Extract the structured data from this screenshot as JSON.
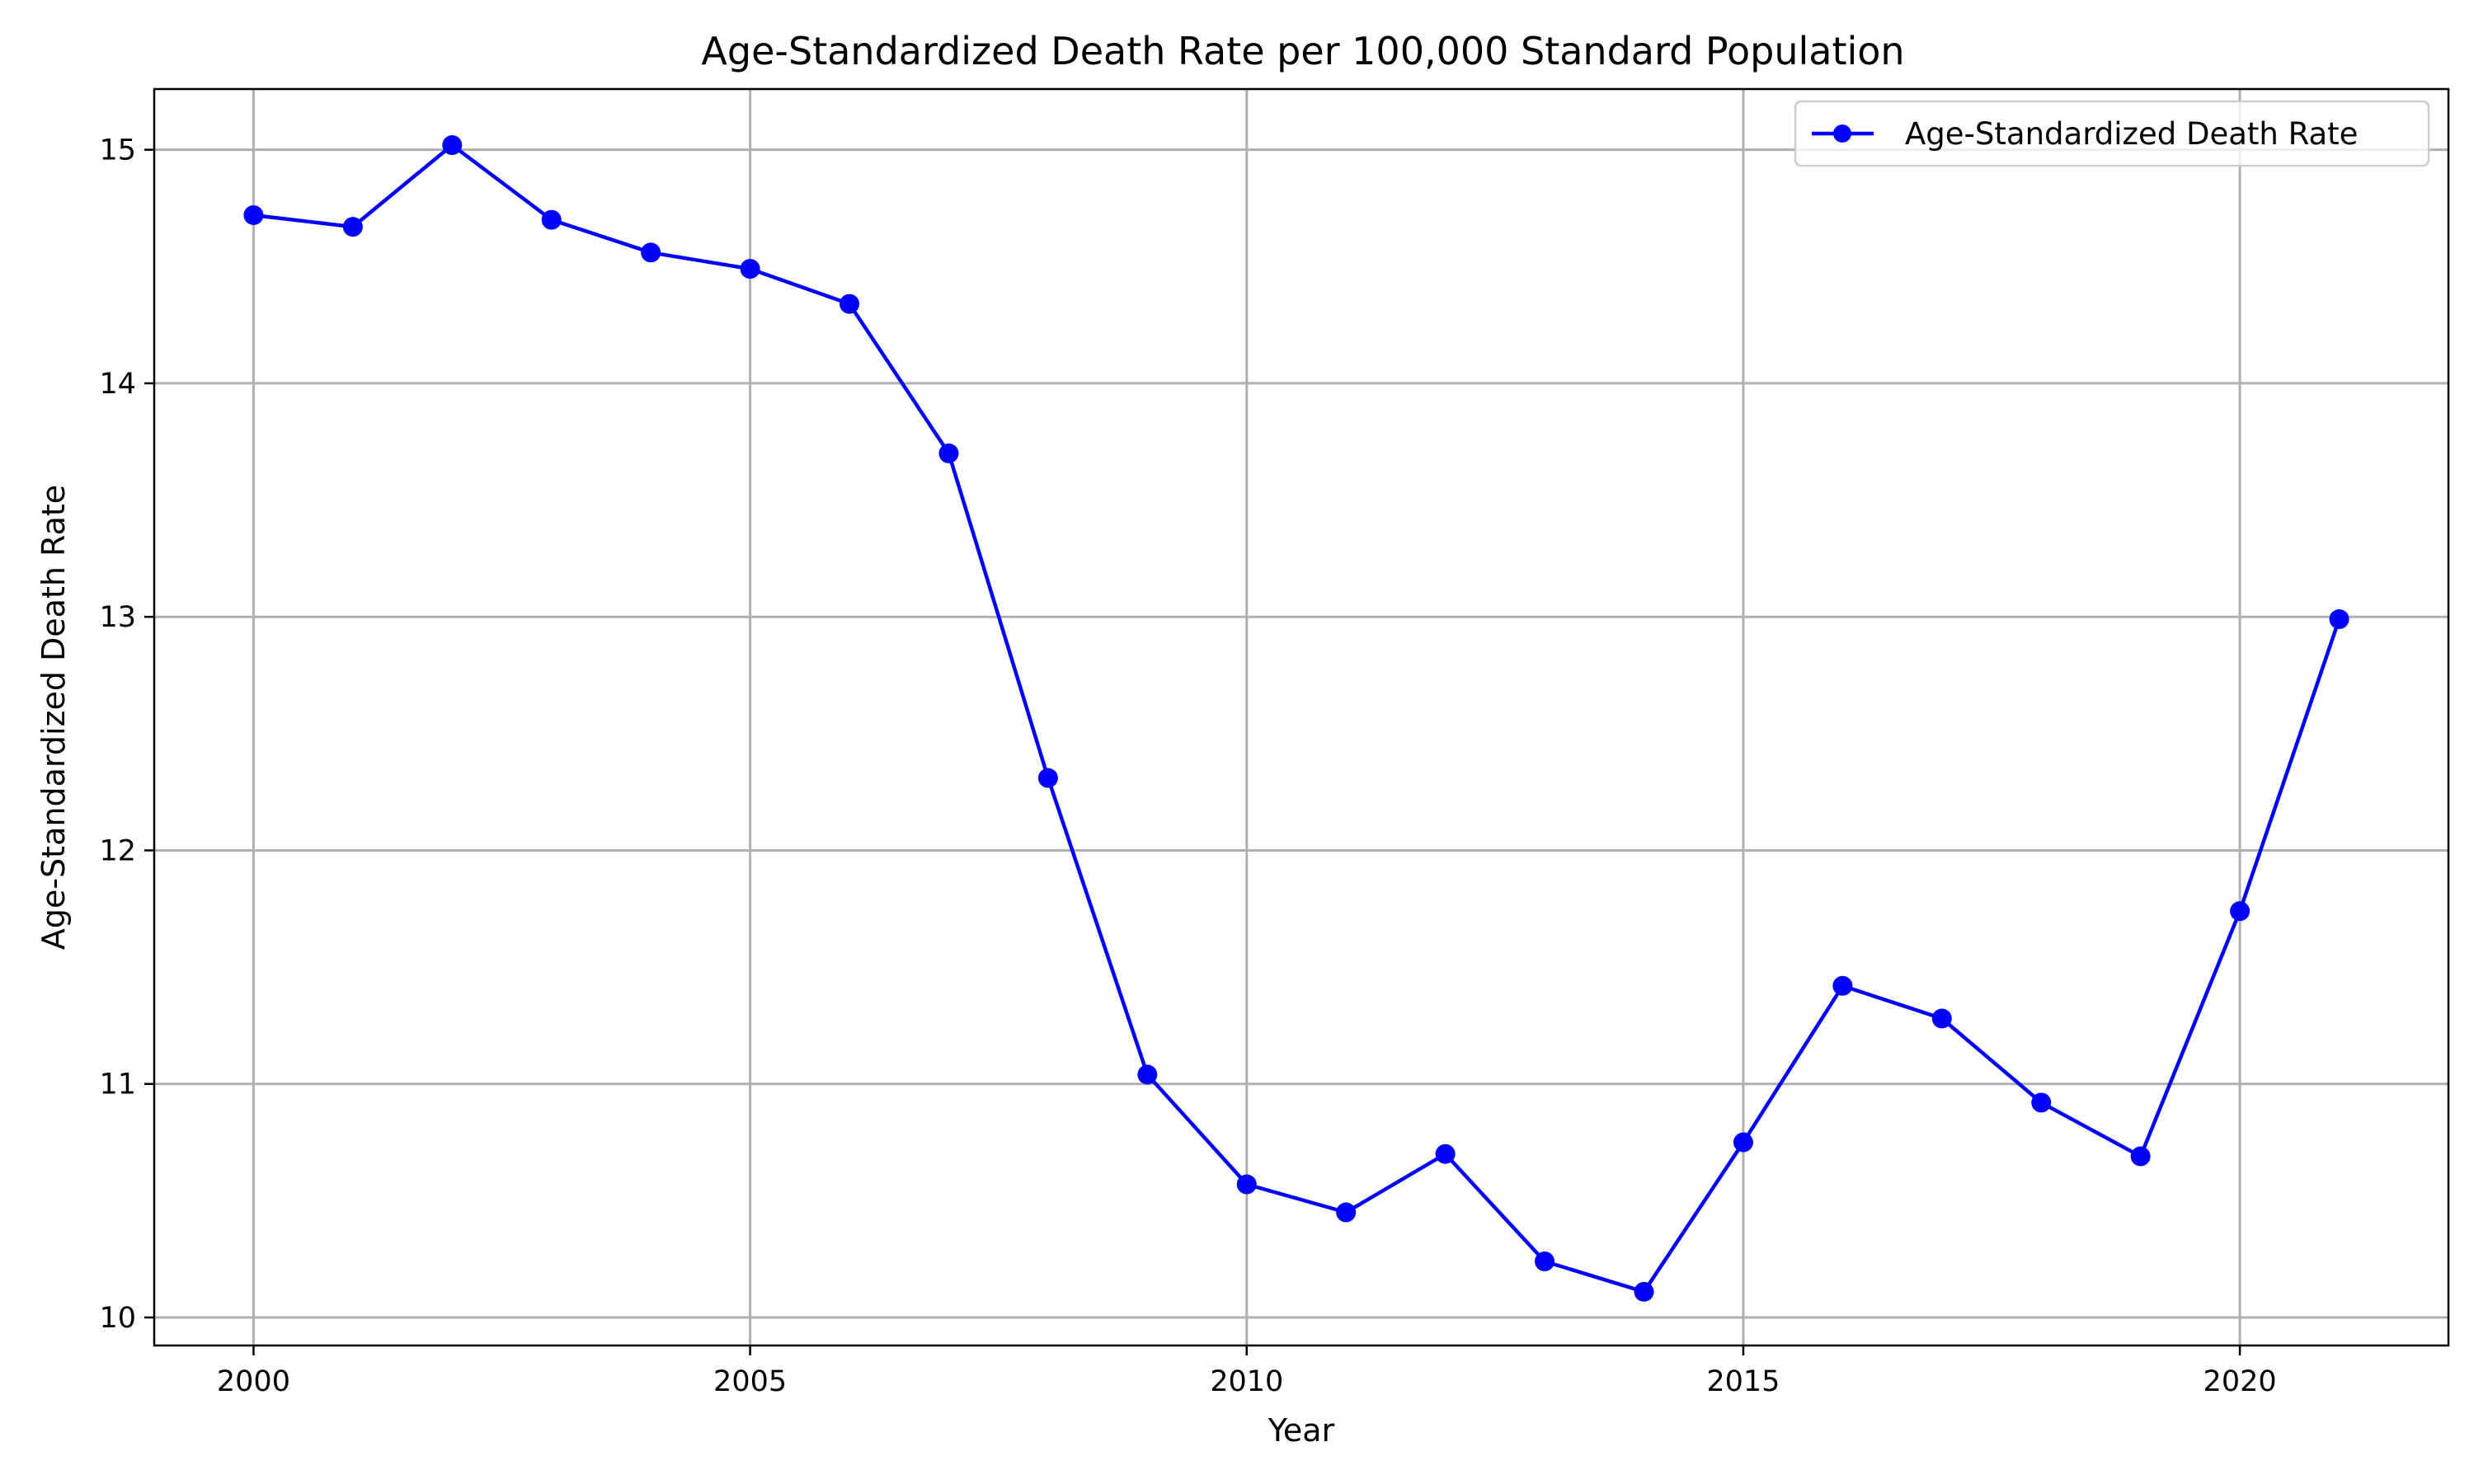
{
  "chart_data": {
    "type": "line",
    "title": "Age-Standardized Death Rate per 100,000 Standard Population",
    "xlabel": "Year",
    "ylabel": "Age-Standardized Death Rate",
    "x": [
      2000,
      2001,
      2002,
      2003,
      2004,
      2005,
      2006,
      2007,
      2008,
      2009,
      2010,
      2011,
      2012,
      2013,
      2014,
      2015,
      2016,
      2017,
      2018,
      2019,
      2020,
      2021
    ],
    "series": [
      {
        "name": "Age-Standardized Death Rate",
        "color": "#0000ff",
        "marker": "circle",
        "values": [
          14.72,
          14.67,
          15.02,
          14.7,
          14.56,
          14.49,
          14.34,
          13.7,
          12.31,
          11.04,
          10.57,
          10.45,
          10.7,
          10.24,
          10.11,
          10.75,
          11.42,
          11.28,
          10.92,
          10.69,
          11.74,
          12.99
        ]
      }
    ],
    "xlim": [
      1999,
      2022.1
    ],
    "ylim": [
      9.88,
      15.26
    ],
    "xticks": [
      2000,
      2005,
      2010,
      2015,
      2020
    ],
    "yticks": [
      10,
      11,
      12,
      13,
      14,
      15
    ],
    "grid": true,
    "legend_position": "top-right"
  }
}
